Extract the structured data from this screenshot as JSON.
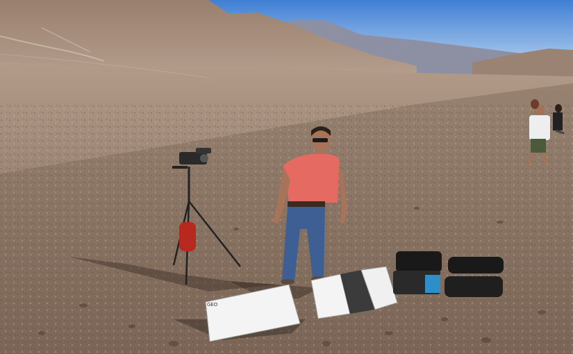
{
  "scene": {
    "colors": {
      "sky_top": "#3f7fd4",
      "sky_bottom": "#cfe2f5",
      "far_ridge": "#8d8fa2",
      "mountain_left": "#a08574",
      "valley": "#a88f7c",
      "ground_near": "#806b5c",
      "shirt": "#e46a62",
      "jeans": "#3e5f93",
      "panel_white": "#f4f4f4",
      "panel_dark": "#3b3b3b",
      "case_teal": "#2e8fc8",
      "bag_black": "#191919"
    },
    "icons": [
      "camera-icon",
      "tripod-icon"
    ],
    "panel_label": "GEO"
  }
}
